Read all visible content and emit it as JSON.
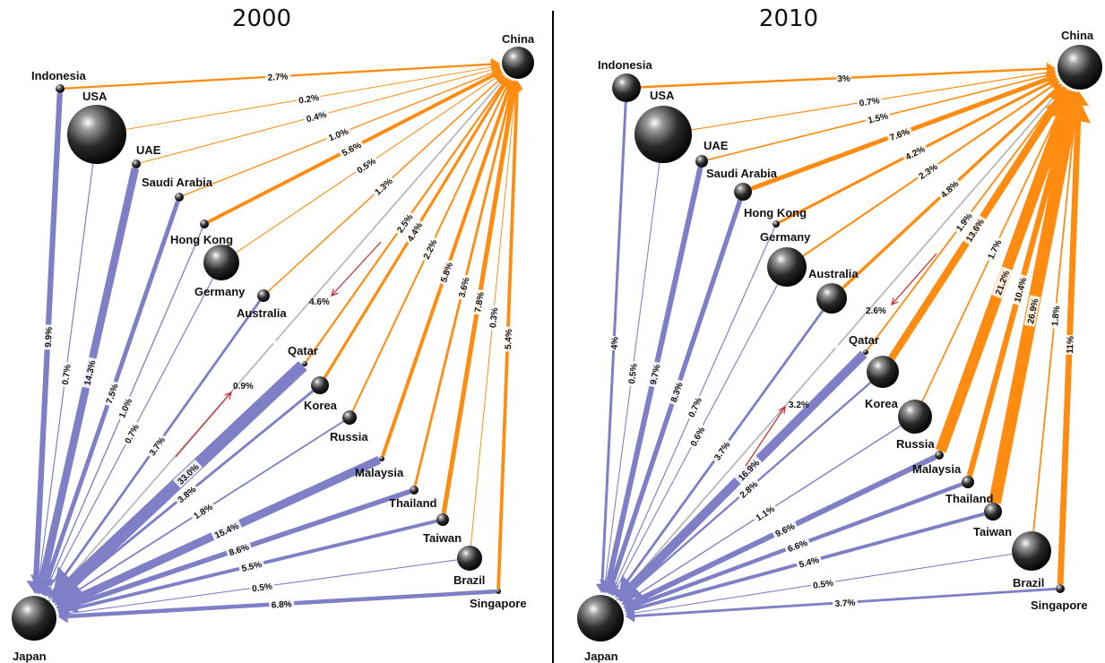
{
  "panels": [
    {
      "year": "2000",
      "nodes": {
        "China": {
          "label": "China"
        },
        "Japan": {
          "label": "Japan"
        },
        "Indonesia": {
          "label": "Indonesia"
        },
        "USA": {
          "label": "USA"
        },
        "UAE": {
          "label": "UAE"
        },
        "SaudiArabia": {
          "label": "Saudi Arabia"
        },
        "HongKong": {
          "label": "Hong Kong"
        },
        "Germany": {
          "label": "Germany"
        },
        "Australia": {
          "label": "Australia"
        },
        "Qatar": {
          "label": "Qatar"
        },
        "Korea": {
          "label": "Korea"
        },
        "Russia": {
          "label": "Russia"
        },
        "Malaysia": {
          "label": "Malaysia"
        },
        "Thailand": {
          "label": "Thailand"
        },
        "Taiwan": {
          "label": "Taiwan"
        },
        "Brazil": {
          "label": "Brazil"
        },
        "Singapore": {
          "label": "Singapore"
        }
      },
      "china_edges": [
        {
          "from": "Indonesia",
          "pct": 2.7,
          "label": "2.7%"
        },
        {
          "from": "USA",
          "pct": 0.2,
          "label": "0.2%"
        },
        {
          "from": "UAE",
          "pct": 0.4,
          "label": "0.4%"
        },
        {
          "from": "SaudiArabia",
          "pct": 1.0,
          "label": "1.0%"
        },
        {
          "from": "HongKong",
          "pct": 5.6,
          "label": "5.6%"
        },
        {
          "from": "Germany",
          "pct": 0.5,
          "label": "0.5%"
        },
        {
          "from": "Australia",
          "pct": 1.3,
          "label": "1.3%"
        },
        {
          "from": "Qatar",
          "pct": 2.5,
          "label": "2.5%"
        },
        {
          "from": "Korea",
          "pct": 4.4,
          "label": "4.4%"
        },
        {
          "from": "Russia",
          "pct": 2.2,
          "label": "2.2%"
        },
        {
          "from": "Malaysia",
          "pct": 5.8,
          "label": "5.8%"
        },
        {
          "from": "Thailand",
          "pct": 3.6,
          "label": "3.6%"
        },
        {
          "from": "Taiwan",
          "pct": 7.8,
          "label": "7.8%"
        },
        {
          "from": "Brazil",
          "pct": 0.3,
          "label": "0.3%"
        },
        {
          "from": "Singapore",
          "pct": 5.4,
          "label": "5.4%"
        }
      ],
      "japan_edges": [
        {
          "from": "Indonesia",
          "pct": 9.9,
          "label": "9.9%"
        },
        {
          "from": "USA",
          "pct": 0.7,
          "label": "0.7%"
        },
        {
          "from": "UAE",
          "pct": 14.3,
          "label": "14.3%"
        },
        {
          "from": "SaudiArabia",
          "pct": 7.5,
          "label": "7.5%"
        },
        {
          "from": "HongKong",
          "pct": 1.0,
          "label": "1.0%"
        },
        {
          "from": "Germany",
          "pct": 0.7,
          "label": "0.7%"
        },
        {
          "from": "Australia",
          "pct": 3.7,
          "label": "3.7%"
        },
        {
          "from": "Qatar",
          "pct": 33.0,
          "label": "33.0%"
        },
        {
          "from": "Korea",
          "pct": 3.8,
          "label": "3.8%"
        },
        {
          "from": "Russia",
          "pct": 1.8,
          "label": "1.8%"
        },
        {
          "from": "Malaysia",
          "pct": 15.4,
          "label": "15.4%"
        },
        {
          "from": "Thailand",
          "pct": 8.6,
          "label": "8.6%"
        },
        {
          "from": "Taiwan",
          "pct": 5.5,
          "label": "5.5%"
        },
        {
          "from": "Brazil",
          "pct": 0.5,
          "label": "0.5%"
        },
        {
          "from": "Singapore",
          "pct": 6.8,
          "label": "6.8%"
        }
      ],
      "bilateral": {
        "japan_to_china": "4.6%",
        "china_to_japan": "0.9%"
      }
    },
    {
      "year": "2010",
      "nodes": {
        "China": {
          "label": "China"
        },
        "Japan": {
          "label": "Japan"
        },
        "Indonesia": {
          "label": "Indonesia"
        },
        "USA": {
          "label": "USA"
        },
        "UAE": {
          "label": "UAE"
        },
        "SaudiArabia": {
          "label": "Saudi Arabia"
        },
        "HongKong": {
          "label": "Hong Kong"
        },
        "Germany": {
          "label": "Germany"
        },
        "Australia": {
          "label": "Australia"
        },
        "Qatar": {
          "label": "Qatar"
        },
        "Korea": {
          "label": "Korea"
        },
        "Russia": {
          "label": "Russia"
        },
        "Malaysia": {
          "label": "Malaysia"
        },
        "Thailand": {
          "label": "Thailand"
        },
        "Taiwan": {
          "label": "Taiwan"
        },
        "Brazil": {
          "label": "Brazil"
        },
        "Singapore": {
          "label": "Singapore"
        }
      },
      "china_edges": [
        {
          "from": "Indonesia",
          "pct": 3,
          "label": "3%"
        },
        {
          "from": "USA",
          "pct": 0.7,
          "label": "0.7%"
        },
        {
          "from": "UAE",
          "pct": 1.5,
          "label": "1.5%"
        },
        {
          "from": "SaudiArabia",
          "pct": 7.6,
          "label": "7.6%"
        },
        {
          "from": "HongKong",
          "pct": 4.2,
          "label": "4.2%"
        },
        {
          "from": "Germany",
          "pct": 2.3,
          "label": "2.3%"
        },
        {
          "from": "Australia",
          "pct": 4.8,
          "label": "4.8%"
        },
        {
          "from": "Qatar",
          "pct": 1.9,
          "label": "1.9%"
        },
        {
          "from": "Korea",
          "pct": 13.6,
          "label": "13.6%"
        },
        {
          "from": "Russia",
          "pct": 1.7,
          "label": "1.7%"
        },
        {
          "from": "Malaysia",
          "pct": 21.2,
          "label": "21.2%"
        },
        {
          "from": "Thailand",
          "pct": 10.4,
          "label": "10.4%"
        },
        {
          "from": "Taiwan",
          "pct": 26.9,
          "label": "26.9%"
        },
        {
          "from": "Brazil",
          "pct": 1.8,
          "label": "1.8%"
        },
        {
          "from": "Singapore",
          "pct": 11,
          "label": "11%"
        }
      ],
      "japan_edges": [
        {
          "from": "Indonesia",
          "pct": 4,
          "label": "4%"
        },
        {
          "from": "USA",
          "pct": 0.5,
          "label": "0.5%"
        },
        {
          "from": "UAE",
          "pct": 9.7,
          "label": "9.7%"
        },
        {
          "from": "SaudiArabia",
          "pct": 8.3,
          "label": "8.3%"
        },
        {
          "from": "HongKong",
          "pct": 0.7,
          "label": "0.7%"
        },
        {
          "from": "Germany",
          "pct": 0.6,
          "label": "0.6%"
        },
        {
          "from": "Australia",
          "pct": 3.7,
          "label": "3.7%"
        },
        {
          "from": "Qatar",
          "pct": 16.9,
          "label": "16.9%"
        },
        {
          "from": "Korea",
          "pct": 2.8,
          "label": "2.8%"
        },
        {
          "from": "Russia",
          "pct": 1.1,
          "label": "1.1%"
        },
        {
          "from": "Malaysia",
          "pct": 9.6,
          "label": "9.6%"
        },
        {
          "from": "Thailand",
          "pct": 6.6,
          "label": "6.6%"
        },
        {
          "from": "Taiwan",
          "pct": 5.4,
          "label": "5.4%"
        },
        {
          "from": "Brazil",
          "pct": 0.5,
          "label": "0.5%"
        },
        {
          "from": "Singapore",
          "pct": 3.7,
          "label": "3.7%"
        }
      ],
      "bilateral": {
        "japan_to_china": "2.6%",
        "china_to_japan": "3.2%"
      }
    }
  ],
  "colors": {
    "china_flow": "#ff8c10",
    "japan_flow": "#7f7fc8",
    "bilateral": "#b8b8b8",
    "arrow": "#c8282e"
  }
}
